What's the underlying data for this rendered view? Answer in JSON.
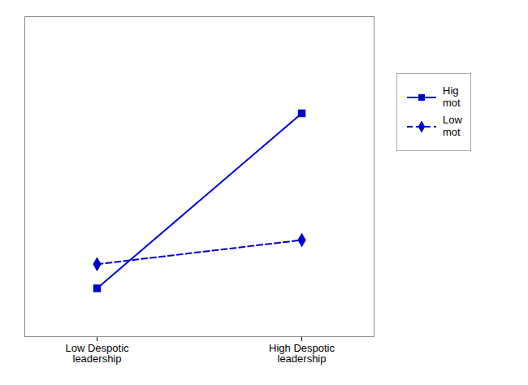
{
  "chart_data": {
    "type": "line",
    "categories": [
      "Low Despotic\nleadership",
      "High Despotic\nleadership"
    ],
    "series": [
      {
        "name": "Hig\nmot",
        "color": "#0000CC",
        "values": [
          2.3,
          5.2
        ],
        "marker": "square",
        "line_style": "solid"
      },
      {
        "name": "Low\nmot",
        "color": "#0000CC",
        "values": [
          2.7,
          3.1
        ],
        "marker": "diamond",
        "line_style": "dashed"
      }
    ],
    "ylim": [
      1.5,
      6.8
    ],
    "tick_labels": "x",
    "grid": false,
    "legend": "right"
  }
}
